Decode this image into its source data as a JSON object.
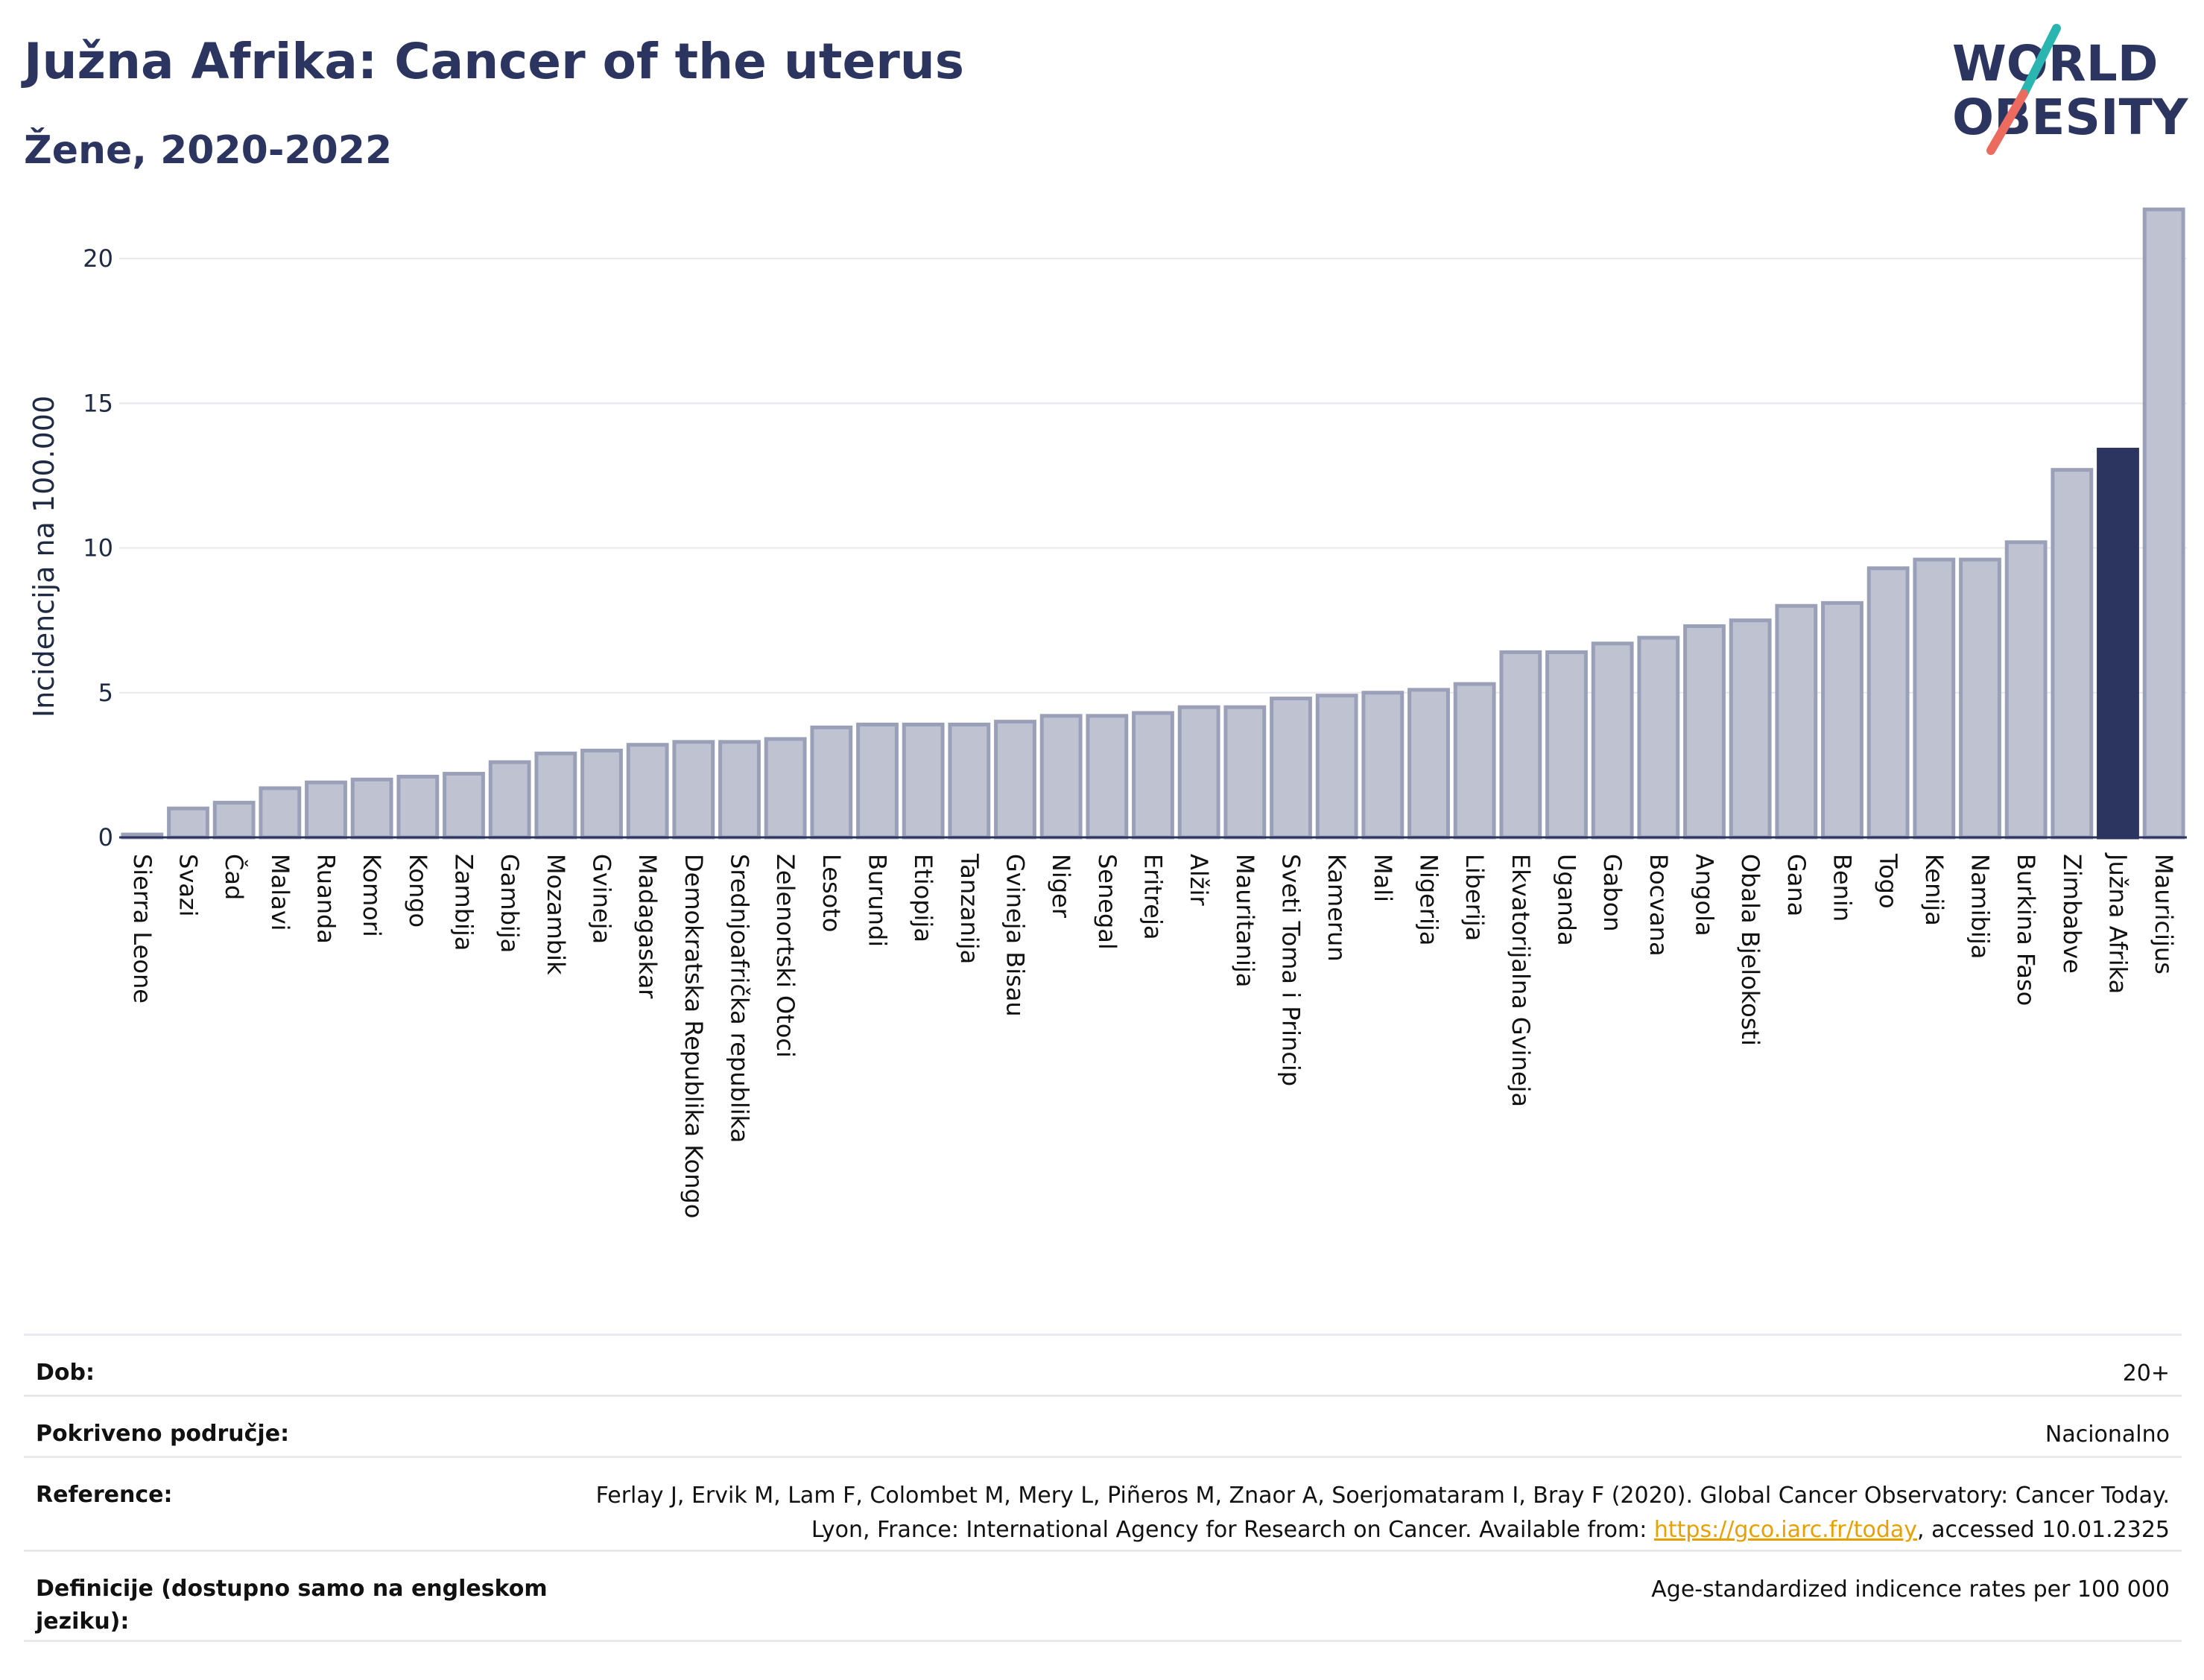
{
  "header": {
    "title": "Južna Afrika: Cancer of the uterus",
    "subtitle": "Žene, 2020-2022",
    "logo_line1": "WORLD",
    "logo_line2": "OBESITY"
  },
  "colors": {
    "bar_default": "#bfc3d1",
    "bar_border": "#9aa0b8",
    "bar_highlight": "#2b3560",
    "title": "#2b3560",
    "link": "#e8a000",
    "logo_teal": "#2bb5b0",
    "logo_coral": "#ec6a5e"
  },
  "chart_data": {
    "type": "bar",
    "title": "",
    "xlabel": "",
    "ylabel": "Incidencija na 100.000",
    "ylim": [
      0,
      22.5
    ],
    "yticks": [
      0,
      5,
      10,
      15,
      20
    ],
    "grid": true,
    "legend": "none",
    "highlight": "Južna Afrika",
    "categories": [
      "Sierra Leone",
      "Svazi",
      "Čad",
      "Malavi",
      "Ruanda",
      "Komori",
      "Kongo",
      "Zambija",
      "Gambija",
      "Mozambik",
      "Gvineja",
      "Madagaskar",
      "Demokratska Republika Kongo",
      "Srednjoafrička republika",
      "Zelenortski Otoci",
      "Lesoto",
      "Burundi",
      "Etiopija",
      "Tanzanija",
      "Gvineja Bisau",
      "Niger",
      "Senegal",
      "Eritreja",
      "Alžir",
      "Mauritanija",
      "Sveti Toma i Princip",
      "Kamerun",
      "Mali",
      "Nigerija",
      "Liberija",
      "Ekvatorijalna Gvineja",
      "Uganda",
      "Gabon",
      "Bocvana",
      "Angola",
      "Obala Bjelokosti",
      "Gana",
      "Benin",
      "Togo",
      "Kenija",
      "Namibija",
      "Burkina Faso",
      "Zimbabve",
      "Južna Afrika",
      "Mauricijus"
    ],
    "values": [
      0.1,
      1.0,
      1.2,
      1.7,
      1.9,
      2.0,
      2.1,
      2.2,
      2.6,
      2.9,
      3.0,
      3.2,
      3.3,
      3.3,
      3.4,
      3.8,
      3.9,
      3.9,
      3.9,
      4.0,
      4.2,
      4.2,
      4.3,
      4.5,
      4.5,
      4.8,
      4.9,
      5.0,
      5.1,
      5.3,
      6.4,
      6.4,
      6.7,
      6.9,
      7.3,
      7.5,
      8.0,
      8.1,
      9.3,
      9.6,
      9.6,
      10.2,
      12.7,
      13.4,
      21.7
    ]
  },
  "info": {
    "age_label": "Dob:",
    "age_value": "20+",
    "coverage_label": "Pokriveno područje:",
    "coverage_value": "Nacionalno",
    "reference_label": "Reference:",
    "reference_text_1": "Ferlay J, Ervik M, Lam F, Colombet M, Mery L, Piñeros M, Znaor A, Soerjomataram I, Bray F (2020). Global Cancer Observatory: Cancer Today. Lyon, France: International Agency for Research on Cancer. Available from: ",
    "reference_link": "https://gco.iarc.fr/today",
    "reference_text_2": ", accessed 10.01.2325",
    "definition_label": "Definicije (dostupno samo na engleskom jeziku):",
    "definition_value": "Age-standardized indicence rates per 100 000"
  }
}
